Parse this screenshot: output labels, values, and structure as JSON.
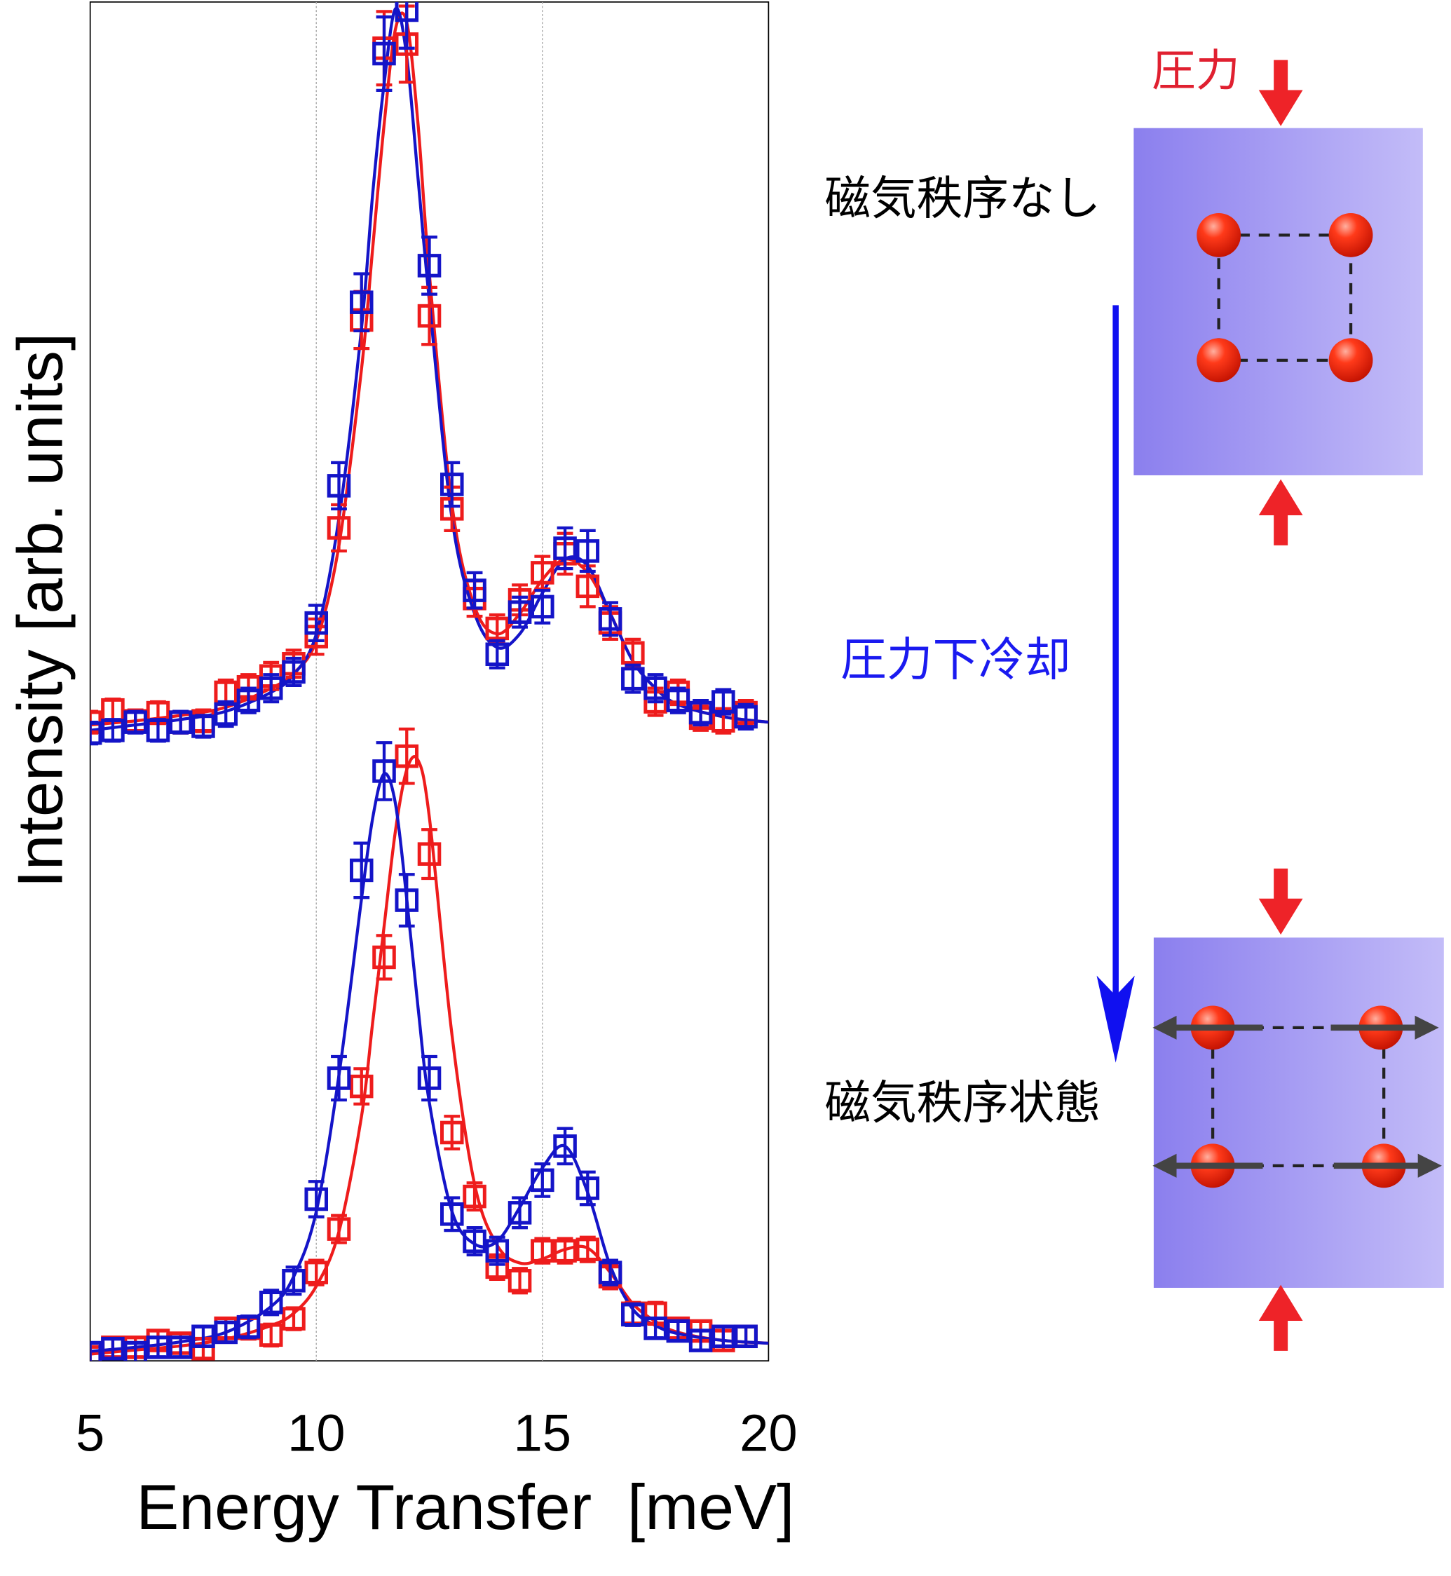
{
  "chart_data": {
    "type": "scatter",
    "x_label": "Energy Transfer  [meV]",
    "y_label": "Intensity [arb. units]",
    "xlim": [
      5,
      20
    ],
    "ylim": [
      0,
      100
    ],
    "xticks": [
      5,
      10,
      15,
      20
    ],
    "grid": "x",
    "x": [
      5,
      5.5,
      6,
      6.5,
      7,
      7.5,
      8,
      8.5,
      9,
      9.5,
      10,
      10.5,
      11,
      11.5,
      12,
      12.5,
      13,
      13.5,
      14,
      14.5,
      15,
      15.5,
      16,
      16.5,
      17,
      17.5,
      18,
      18.5,
      19,
      19.5
    ],
    "series": [
      {
        "color": "#ee1c1c",
        "values": [
          47.0,
          47.9,
          47.1,
          47.7,
          47.0,
          47.1,
          49.2,
          49.6,
          50.4,
          51.3,
          53.3,
          61.3,
          76.6,
          96.6,
          96.9,
          76.9,
          62.7,
          56.1,
          53.9,
          56.0,
          58.0,
          59.4,
          57.0,
          54.3,
          52.1,
          48.5,
          49.2,
          47.3,
          47.1,
          47.7
        ],
        "errors": [
          0.8,
          0.8,
          0.8,
          0.8,
          0.8,
          0.8,
          0.9,
          0.9,
          1.0,
          1.0,
          1.3,
          1.7,
          2.1,
          2.7,
          2.8,
          2.1,
          1.6,
          1.3,
          1.0,
          1.1,
          1.2,
          1.5,
          1.5,
          1.2,
          1.0,
          1.0,
          0.9,
          0.9,
          0.9,
          0.9
        ]
      },
      {
        "color": "#1414c8",
        "values": [
          46.2,
          46.4,
          47.0,
          46.4,
          47.0,
          46.7,
          47.6,
          48.6,
          49.5,
          50.7,
          54.3,
          64.4,
          77.9,
          96.2,
          99.4,
          80.6,
          64.5,
          56.7,
          52.0,
          55.1,
          55.5,
          59.8,
          59.6,
          54.6,
          50.2,
          49.5,
          48.6,
          47.7,
          48.5,
          47.4
        ],
        "errors": [
          0.8,
          0.8,
          0.8,
          0.8,
          0.8,
          0.8,
          0.9,
          0.9,
          1.0,
          1.0,
          1.3,
          1.7,
          2.1,
          2.7,
          2.8,
          2.1,
          1.6,
          1.3,
          1.0,
          1.1,
          1.2,
          1.5,
          1.5,
          1.2,
          1.0,
          1.0,
          0.9,
          0.9,
          0.9,
          0.9
        ]
      },
      {
        "color": "#ee1c1c",
        "values": [
          0.3,
          1.0,
          1.0,
          1.5,
          1.3,
          0.9,
          2.4,
          2.4,
          1.9,
          3.1,
          6.5,
          9.7,
          20.2,
          29.7,
          44.5,
          37.3,
          16.8,
          12.1,
          6.9,
          5.9,
          8.1,
          8.1,
          8.2,
          6.2,
          3.5,
          3.5,
          2.4,
          2.2,
          1.5,
          1.8
        ],
        "errors": [
          0.7,
          0.7,
          0.7,
          0.7,
          0.7,
          0.7,
          0.7,
          0.8,
          0.8,
          0.8,
          0.9,
          1.0,
          1.3,
          1.6,
          2.0,
          1.8,
          1.2,
          1.0,
          0.9,
          0.9,
          0.9,
          0.9,
          0.9,
          0.9,
          0.8,
          0.8,
          0.7,
          0.7,
          0.7,
          0.7
        ]
      },
      {
        "color": "#1414c8",
        "values": [
          0.6,
          0.9,
          0.6,
          1.0,
          1.0,
          1.8,
          2.1,
          2.5,
          4.3,
          5.9,
          11.9,
          20.8,
          36.1,
          43.4,
          33.9,
          20.8,
          10.8,
          8.8,
          8.1,
          10.9,
          13.3,
          15.8,
          12.7,
          6.5,
          3.4,
          2.4,
          2.2,
          1.5,
          1.8,
          1.8
        ],
        "errors": [
          0.7,
          0.7,
          0.7,
          0.7,
          0.7,
          0.7,
          0.7,
          0.8,
          0.9,
          1.0,
          1.3,
          1.6,
          2.0,
          2.1,
          1.9,
          1.6,
          1.2,
          1.0,
          1.0,
          1.1,
          1.2,
          1.3,
          1.2,
          0.9,
          0.8,
          0.7,
          0.7,
          0.7,
          0.7,
          0.7
        ]
      }
    ],
    "fit_x": [
      5,
      6,
      7,
      8,
      9,
      9.5,
      10,
      10.5,
      11,
      11.25,
      11.5,
      11.75,
      12,
      12.25,
      12.5,
      13,
      13.5,
      14,
      14.5,
      15,
      15.5,
      16,
      16.5,
      17,
      17.5,
      18,
      19,
      20
    ],
    "fits": [
      {
        "color": "#ee1c1c",
        "values": [
          46.8,
          47.1,
          47.5,
          48.1,
          49.5,
          50.6,
          53.0,
          60,
          73,
          82,
          91,
          98,
          98.5,
          91,
          80,
          63,
          55.5,
          53.5,
          55,
          57.5,
          59,
          58,
          55,
          51.5,
          49.5,
          48.3,
          47.4,
          47.0
        ]
      },
      {
        "color": "#1414c8",
        "values": [
          46.4,
          46.8,
          47.2,
          47.8,
          49.2,
          50.5,
          53.5,
          62,
          76,
          86,
          94,
          99.5,
          96,
          87,
          78,
          62,
          55,
          52.5,
          53.5,
          56.5,
          59,
          58.5,
          55,
          51.5,
          49.5,
          48.3,
          47.4,
          47.0
        ]
      },
      {
        "color": "#ee1c1c",
        "values": [
          0.5,
          0.8,
          1.1,
          1.6,
          2.6,
          3.5,
          5.5,
          9.5,
          18,
          25,
          32,
          39,
          43.5,
          44.2,
          40,
          24,
          13,
          8.5,
          7.2,
          7.5,
          8.2,
          8.3,
          6.5,
          4.2,
          2.9,
          2.1,
          1.5,
          1.3
        ]
      },
      {
        "color": "#1414c8",
        "values": [
          0.7,
          1.0,
          1.4,
          2.1,
          4.0,
          6.2,
          11,
          21,
          34,
          40,
          43.2,
          41,
          34,
          26,
          19,
          11,
          8.6,
          8.8,
          11.3,
          14.2,
          15.8,
          12.4,
          7.0,
          3.8,
          2.6,
          2.0,
          1.5,
          1.3
        ]
      }
    ]
  },
  "diagram": {
    "pressure_label": "圧力",
    "state_before": "磁気秩序なし",
    "process": "圧力下冷却",
    "state_after": "磁気秩序状態"
  }
}
